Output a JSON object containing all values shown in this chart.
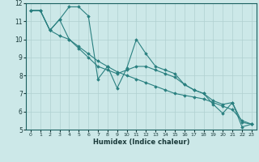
{
  "xlabel": "Humidex (Indice chaleur)",
  "bg_color": "#cce8e8",
  "line_color": "#2a8080",
  "grid_color": "#b0d0d0",
  "xlim": [
    -0.5,
    23.5
  ],
  "ylim": [
    5,
    12
  ],
  "xticks": [
    0,
    1,
    2,
    3,
    4,
    5,
    6,
    7,
    8,
    9,
    10,
    11,
    12,
    13,
    14,
    15,
    16,
    17,
    18,
    19,
    20,
    21,
    22,
    23
  ],
  "yticks": [
    5,
    6,
    7,
    8,
    9,
    10,
    11,
    12
  ],
  "s1x": [
    0,
    1,
    2,
    3,
    4,
    5,
    6,
    7,
    8,
    9,
    10,
    11,
    12,
    13,
    14,
    15,
    16,
    17,
    18,
    19,
    20,
    21,
    22,
    23
  ],
  "s1y": [
    11.6,
    11.6,
    10.5,
    11.1,
    11.8,
    11.8,
    11.3,
    7.8,
    8.5,
    7.3,
    8.4,
    10.0,
    9.2,
    8.5,
    8.3,
    8.1,
    7.5,
    7.2,
    7.0,
    6.4,
    5.9,
    6.5,
    5.15,
    5.3
  ],
  "s2x": [
    0,
    1,
    2,
    3,
    4,
    5,
    6,
    7,
    8,
    9,
    10,
    11,
    12,
    13,
    14,
    15,
    16,
    17,
    18,
    19,
    20,
    21,
    22,
    23
  ],
  "s2y": [
    11.6,
    11.6,
    10.5,
    11.1,
    10.0,
    9.5,
    9.0,
    8.5,
    8.3,
    8.1,
    8.3,
    8.5,
    8.5,
    8.3,
    8.1,
    7.9,
    7.5,
    7.2,
    7.0,
    6.6,
    6.4,
    6.5,
    5.4,
    5.3
  ],
  "s3x": [
    0,
    1,
    2,
    3,
    4,
    5,
    6,
    7,
    8,
    9,
    10,
    11,
    12,
    13,
    14,
    15,
    16,
    17,
    18,
    19,
    20,
    21,
    22,
    23
  ],
  "s3y": [
    11.6,
    11.6,
    10.5,
    10.2,
    10.0,
    9.6,
    9.2,
    8.8,
    8.5,
    8.2,
    8.0,
    7.8,
    7.6,
    7.4,
    7.2,
    7.0,
    6.9,
    6.8,
    6.7,
    6.5,
    6.3,
    6.1,
    5.5,
    5.3
  ]
}
